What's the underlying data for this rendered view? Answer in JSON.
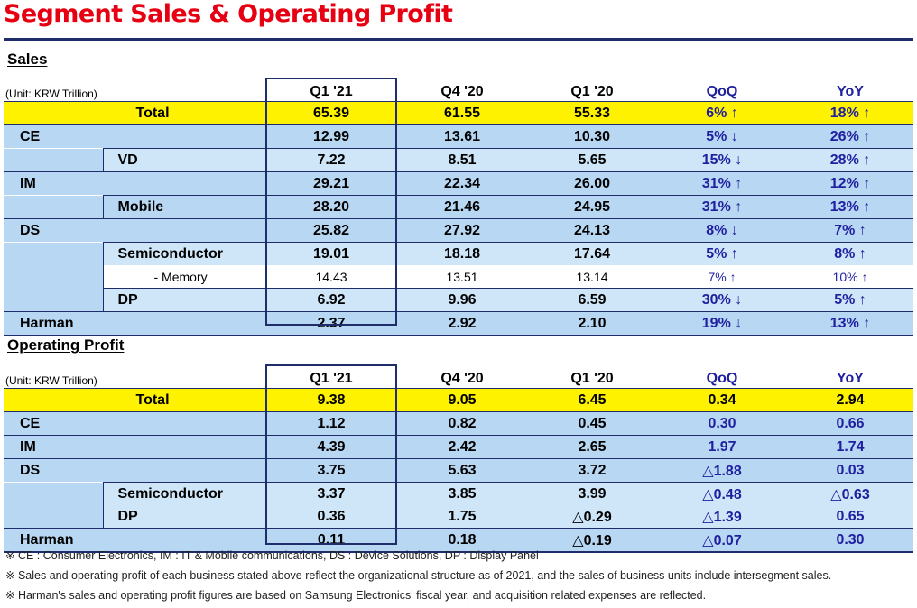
{
  "title": "Segment Sales & Operating Profit",
  "sales": {
    "section_title": "Sales",
    "unit": "(Unit: KRW Trillion)",
    "headers": [
      "Q1 '21",
      "Q4 '20",
      "Q1 '20",
      "QoQ",
      "YoY"
    ],
    "rows": [
      {
        "label": "Total",
        "q1_21": "65.39",
        "q4_20": "61.55",
        "q1_20": "55.33",
        "qoq": "6% ↑",
        "yoy": "18% ↑"
      },
      {
        "label": "CE",
        "q1_21": "12.99",
        "q4_20": "13.61",
        "q1_20": "10.30",
        "qoq": "5% ↓",
        "yoy": "26% ↑"
      },
      {
        "label": "VD",
        "q1_21": "7.22",
        "q4_20": "8.51",
        "q1_20": "5.65",
        "qoq": "15% ↓",
        "yoy": "28% ↑"
      },
      {
        "label": "IM",
        "q1_21": "29.21",
        "q4_20": "22.34",
        "q1_20": "26.00",
        "qoq": "31% ↑",
        "yoy": "12% ↑"
      },
      {
        "label": "Mobile",
        "q1_21": "28.20",
        "q4_20": "21.46",
        "q1_20": "24.95",
        "qoq": "31% ↑",
        "yoy": "13% ↑"
      },
      {
        "label": "DS",
        "q1_21": "25.82",
        "q4_20": "27.92",
        "q1_20": "24.13",
        "qoq": "8% ↓",
        "yoy": "7% ↑"
      },
      {
        "label": "Semiconductor",
        "q1_21": "19.01",
        "q4_20": "18.18",
        "q1_20": "17.64",
        "qoq": "5% ↑",
        "yoy": "8% ↑"
      },
      {
        "label": "- Memory",
        "q1_21": "14.43",
        "q4_20": "13.51",
        "q1_20": "13.14",
        "qoq": "7% ↑",
        "yoy": "10% ↑"
      },
      {
        "label": "DP",
        "q1_21": "6.92",
        "q4_20": "9.96",
        "q1_20": "6.59",
        "qoq": "30% ↓",
        "yoy": "5% ↑"
      },
      {
        "label": "Harman",
        "q1_21": "2.37",
        "q4_20": "2.92",
        "q1_20": "2.10",
        "qoq": "19% ↓",
        "yoy": "13% ↑"
      }
    ]
  },
  "op": {
    "section_title": "Operating Profit",
    "unit": "(Unit: KRW Trillion)",
    "headers": [
      "Q1 '21",
      "Q4 '20",
      "Q1 '20",
      "QoQ",
      "YoY"
    ],
    "rows": [
      {
        "label": "Total",
        "q1_21": "9.38",
        "q4_20": "9.05",
        "q1_20": "6.45",
        "qoq": "0.34",
        "yoy": "2.94"
      },
      {
        "label": "CE",
        "q1_21": "1.12",
        "q4_20": "0.82",
        "q1_20": "0.45",
        "qoq": "0.30",
        "yoy": "0.66"
      },
      {
        "label": "IM",
        "q1_21": "4.39",
        "q4_20": "2.42",
        "q1_20": "2.65",
        "qoq": "1.97",
        "yoy": "1.74"
      },
      {
        "label": "DS",
        "q1_21": "3.75",
        "q4_20": "5.63",
        "q1_20": "3.72",
        "qoq": "△1.88",
        "yoy": "0.03"
      },
      {
        "label": "Semiconductor",
        "q1_21": "3.37",
        "q4_20": "3.85",
        "q1_20": "3.99",
        "qoq": "△0.48",
        "yoy": "△0.63"
      },
      {
        "label": "DP",
        "q1_21": "0.36",
        "q4_20": "1.75",
        "q1_20": "△0.29",
        "qoq": "△1.39",
        "yoy": "0.65"
      },
      {
        "label": "Harman",
        "q1_21": "0.11",
        "q4_20": "0.18",
        "q1_20": "△0.19",
        "qoq": "△0.07",
        "yoy": "0.30"
      }
    ]
  },
  "notes": [
    "※ CE : Consumer Electronics,  IM : IT & Mobile communications,  DS : Device Solutions,  DP : Display Panel",
    "※ Sales and operating profit of each business stated above reflect the organizational structure  as of 2021, and the sales of business units include intersegment sales.",
    "※ Harman's sales and operating profit figures are based on Samsung Electronics' fiscal year, and acquisition related expenses are reflected."
  ]
}
